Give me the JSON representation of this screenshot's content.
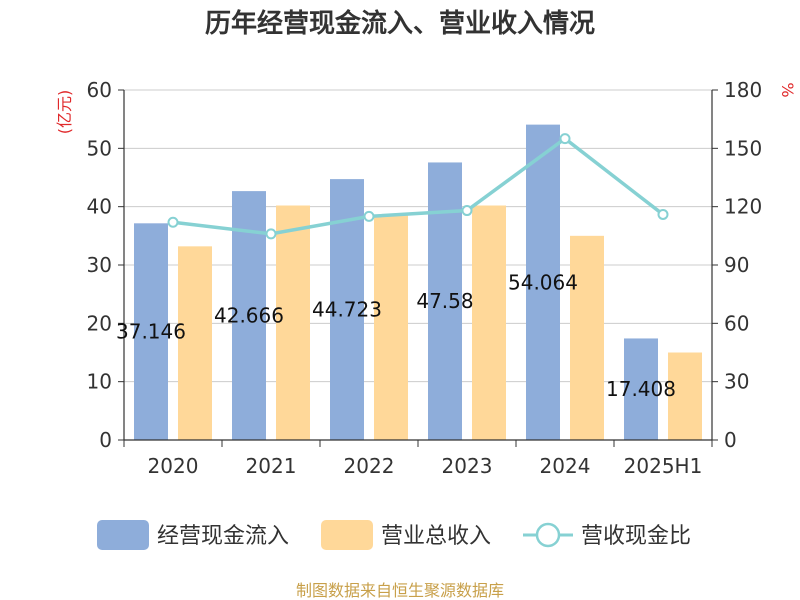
{
  "title": "历年经营现金流入、营业收入情况",
  "footer": "制图数据来自恒生聚源数据库",
  "colors": {
    "cash_inflow": "#8EADDA",
    "revenue": "#FFD899",
    "ratio": "#86D1D3",
    "unit_text": "#E0292B",
    "footer_text": "#C8A04A",
    "axis": "#333333",
    "grid": "#CCCCCC"
  },
  "chart_data": {
    "type": "bar",
    "categories": [
      "2020",
      "2021",
      "2022",
      "2023",
      "2024",
      "2025H1"
    ],
    "series": [
      {
        "name": "经营现金流入",
        "axis": "left",
        "values": [
          37.146,
          42.666,
          44.723,
          47.58,
          54.064,
          17.408
        ],
        "labels": [
          "37.146",
          "42.666",
          "44.723",
          "47.58",
          "54.064",
          "17.408"
        ]
      },
      {
        "name": "营业总收入",
        "axis": "left",
        "values": [
          33.2,
          40.2,
          38.5,
          40.2,
          35.0,
          15.0
        ]
      },
      {
        "name": "营收现金比",
        "axis": "right",
        "type": "line",
        "values": [
          112,
          106,
          115,
          118,
          155,
          116
        ]
      }
    ],
    "y_left": {
      "unit": "(亿元)",
      "ylim": [
        0,
        60
      ],
      "ticks": [
        "0",
        "10",
        "20",
        "30",
        "40",
        "50",
        "60"
      ]
    },
    "y_right": {
      "unit": "%",
      "ylim": [
        0,
        180
      ],
      "ticks": [
        "0",
        "30",
        "60",
        "90",
        "120",
        "150",
        "180"
      ]
    },
    "grid": true,
    "legend_position": "bottom"
  }
}
